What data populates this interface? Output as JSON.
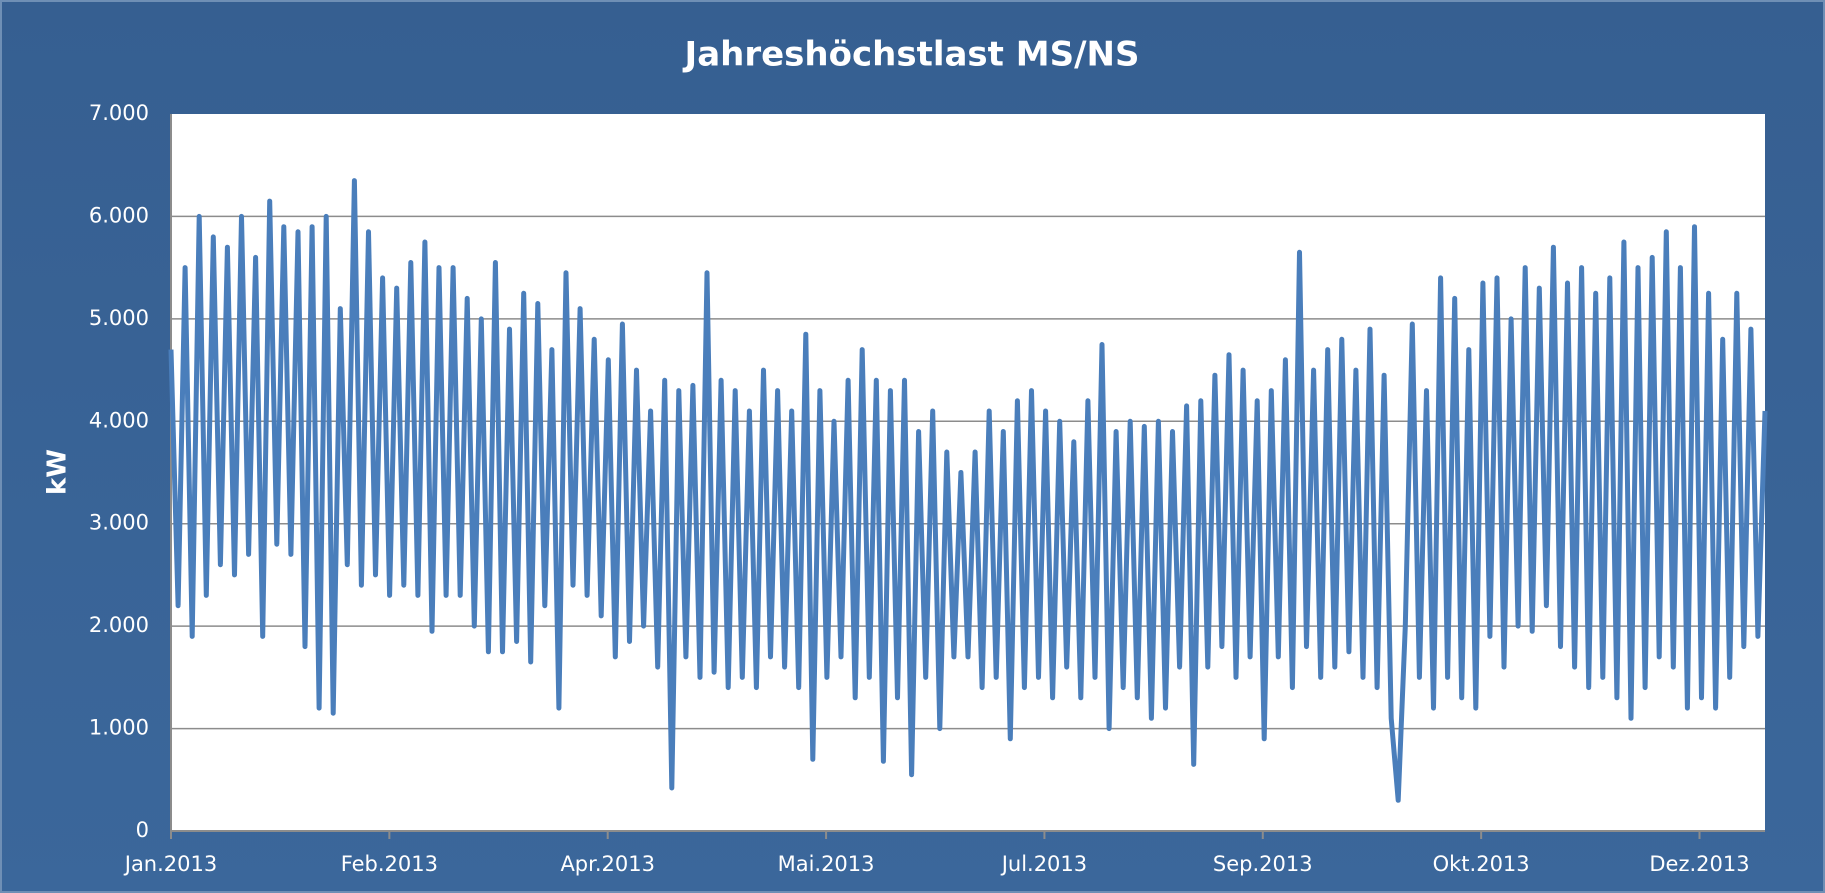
{
  "chart_data": {
    "type": "line",
    "title": "Jahreshöchstlast MS/NS",
    "ylabel": "kW",
    "ylim": [
      0,
      7000
    ],
    "yticks": [
      0,
      {
        "value": 1000,
        "label": "1.000"
      },
      {
        "value": 2000,
        "label": "2.000"
      },
      {
        "value": 3000,
        "label": "3.000"
      },
      {
        "value": 4000,
        "label": "4.000"
      },
      {
        "value": 5000,
        "label": "5.000"
      },
      {
        "value": 6000,
        "label": "6.000"
      },
      {
        "value": 7000,
        "label": "7.000"
      }
    ],
    "xlim": [
      0,
      7.3
    ],
    "xticks": [
      {
        "value": 0,
        "label": "Jan.2013"
      },
      {
        "value": 1,
        "label": "Feb.2013"
      },
      {
        "value": 2,
        "label": "Apr.2013"
      },
      {
        "value": 3,
        "label": "Mai.2013"
      },
      {
        "value": 4,
        "label": "Jul.2013"
      },
      {
        "value": 5,
        "label": "Sep.2013"
      },
      {
        "value": 6,
        "label": "Okt.2013"
      },
      {
        "value": 7,
        "label": "Dez.2013"
      }
    ],
    "grid": true,
    "color": "#4a7ebb",
    "values": [
      4700,
      2200,
      5500,
      1900,
      6000,
      2300,
      5800,
      2600,
      5700,
      2500,
      6000,
      2700,
      5600,
      1900,
      6150,
      2800,
      5900,
      2700,
      5850,
      1800,
      5900,
      1200,
      6000,
      1150,
      5100,
      2600,
      6350,
      2400,
      5850,
      2500,
      5400,
      2300,
      5300,
      2400,
      5550,
      2300,
      5750,
      1950,
      5500,
      2300,
      5500,
      2300,
      5200,
      2000,
      5000,
      1750,
      5550,
      1750,
      4900,
      1850,
      5250,
      1650,
      5150,
      2200,
      4700,
      1200,
      5450,
      2400,
      5100,
      2300,
      4800,
      2100,
      4600,
      1700,
      4950,
      1850,
      4500,
      2000,
      4100,
      1600,
      4400,
      420,
      4300,
      1700,
      4350,
      1500,
      5450,
      1550,
      4400,
      1400,
      4300,
      1500,
      4100,
      1400,
      4500,
      1700,
      4300,
      1600,
      4100,
      1400,
      4850,
      700,
      4300,
      1500,
      4000,
      1700,
      4400,
      1300,
      4700,
      1500,
      4400,
      680,
      4300,
      1300,
      4400,
      550,
      3900,
      1500,
      4100,
      1000,
      3700,
      1700,
      3500,
      1700,
      3700,
      1400,
      4100,
      1500,
      3900,
      900,
      4200,
      1400,
      4300,
      1500,
      4100,
      1300,
      4000,
      1600,
      3800,
      1300,
      4200,
      1500,
      4750,
      1000,
      3900,
      1400,
      4000,
      1300,
      3950,
      1100,
      4000,
      1200,
      3900,
      1600,
      4150,
      650,
      4200,
      1600,
      4450,
      1800,
      4650,
      1500,
      4500,
      1700,
      4200,
      900,
      4300,
      1700,
      4600,
      1400,
      5650,
      1800,
      4500,
      1500,
      4700,
      1600,
      4800,
      1750,
      4500,
      1500,
      4900,
      1400,
      4450,
      1100,
      300,
      2000,
      4950,
      1500,
      4300,
      1200,
      5400,
      1500,
      5200,
      1300,
      4700,
      1200,
      5350,
      1900,
      5400,
      1600,
      5000,
      2000,
      5500,
      1950,
      5300,
      2200,
      5700,
      1800,
      5350,
      1600,
      5500,
      1400,
      5250,
      1500,
      5400,
      1300,
      5750,
      1100,
      5500,
      1400,
      5600,
      1700,
      5850,
      1600,
      5500,
      1200,
      5900,
      1300,
      5250,
      1200,
      4800,
      1500,
      5250,
      1800,
      4900,
      1900,
      4100
    ]
  }
}
